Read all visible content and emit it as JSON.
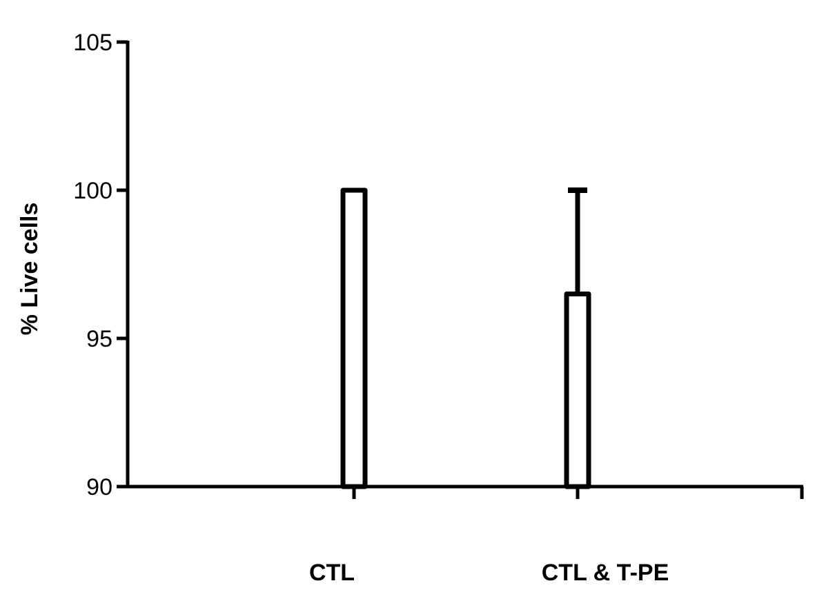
{
  "chart_data": {
    "type": "bar",
    "title": "",
    "xlabel": "",
    "ylabel": "% Live cells",
    "categories": [
      "CTL",
      "CTL & T-PE"
    ],
    "values": [
      100,
      96.5
    ],
    "error_upper": [
      0,
      3.5
    ],
    "ylim": [
      90,
      105
    ],
    "yticks": [
      "90",
      "95",
      "100",
      "105"
    ],
    "grid": false,
    "legend": "none",
    "bar_fill": "#ffffff",
    "stroke_color": "#000000"
  }
}
